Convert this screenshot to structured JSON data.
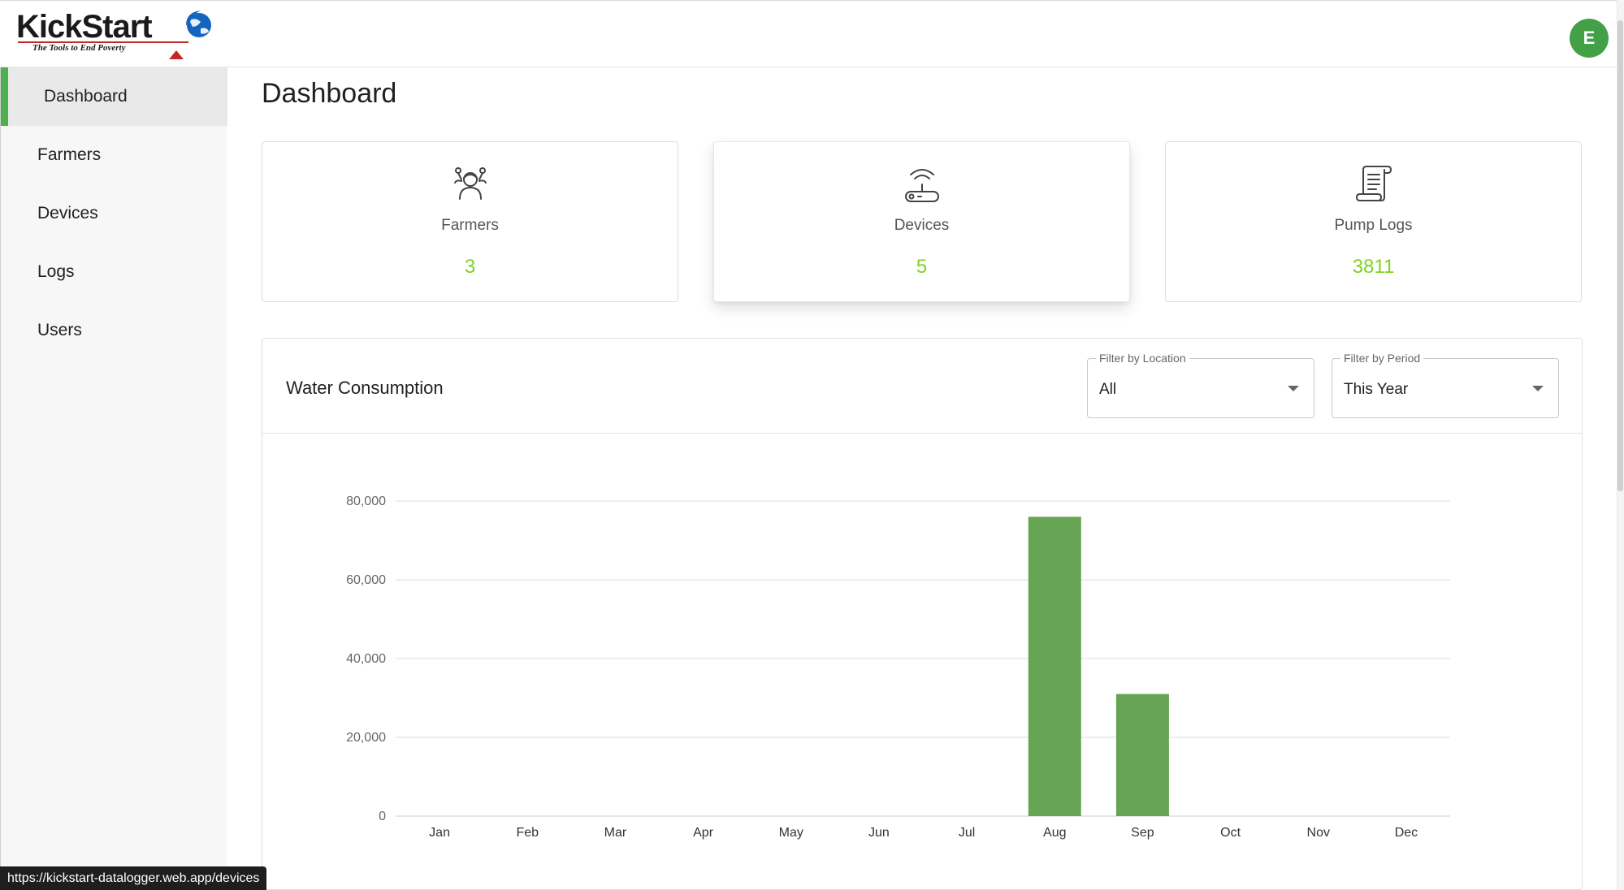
{
  "header": {
    "logo_word": "KickStart",
    "logo_tagline": "The Tools to End Poverty",
    "avatar_letter": "E"
  },
  "sidebar": {
    "items": [
      {
        "label": "Dashboard",
        "active": true
      },
      {
        "label": "Farmers",
        "active": false
      },
      {
        "label": "Devices",
        "active": false
      },
      {
        "label": "Logs",
        "active": false
      },
      {
        "label": "Users",
        "active": false
      }
    ]
  },
  "main": {
    "title": "Dashboard",
    "stats": [
      {
        "label": "Farmers",
        "value": "3",
        "icon": "farmer-icon"
      },
      {
        "label": "Devices",
        "value": "5",
        "icon": "router-icon"
      },
      {
        "label": "Pump Logs",
        "value": "3811",
        "icon": "scroll-icon"
      }
    ],
    "chart_card": {
      "title": "Water Consumption",
      "filter_location": {
        "legend": "Filter by Location",
        "value": "All"
      },
      "filter_period": {
        "legend": "Filter by Period",
        "value": "This Year"
      }
    }
  },
  "colors": {
    "accent": "#4caf50",
    "stat_value": "#7ed321",
    "bar": "#66a553",
    "avatar": "#43a047"
  },
  "status_bar": {
    "url": "https://kickstart-datalogger.web.app/devices"
  },
  "chart_data": {
    "type": "bar",
    "categories": [
      "Jan",
      "Feb",
      "Mar",
      "Apr",
      "May",
      "Jun",
      "Jul",
      "Aug",
      "Sep",
      "Oct",
      "Nov",
      "Dec"
    ],
    "values": [
      0,
      0,
      0,
      0,
      0,
      0,
      0,
      76000,
      31000,
      0,
      0,
      0
    ],
    "title": "",
    "xlabel": "",
    "ylabel": "",
    "ylim": [
      0,
      80000
    ],
    "yticks": [
      "0",
      "20,000",
      "40,000",
      "60,000",
      "80,000"
    ],
    "ytick_values": [
      0,
      20000,
      40000,
      60000,
      80000
    ],
    "grid": true,
    "legend": "none"
  }
}
